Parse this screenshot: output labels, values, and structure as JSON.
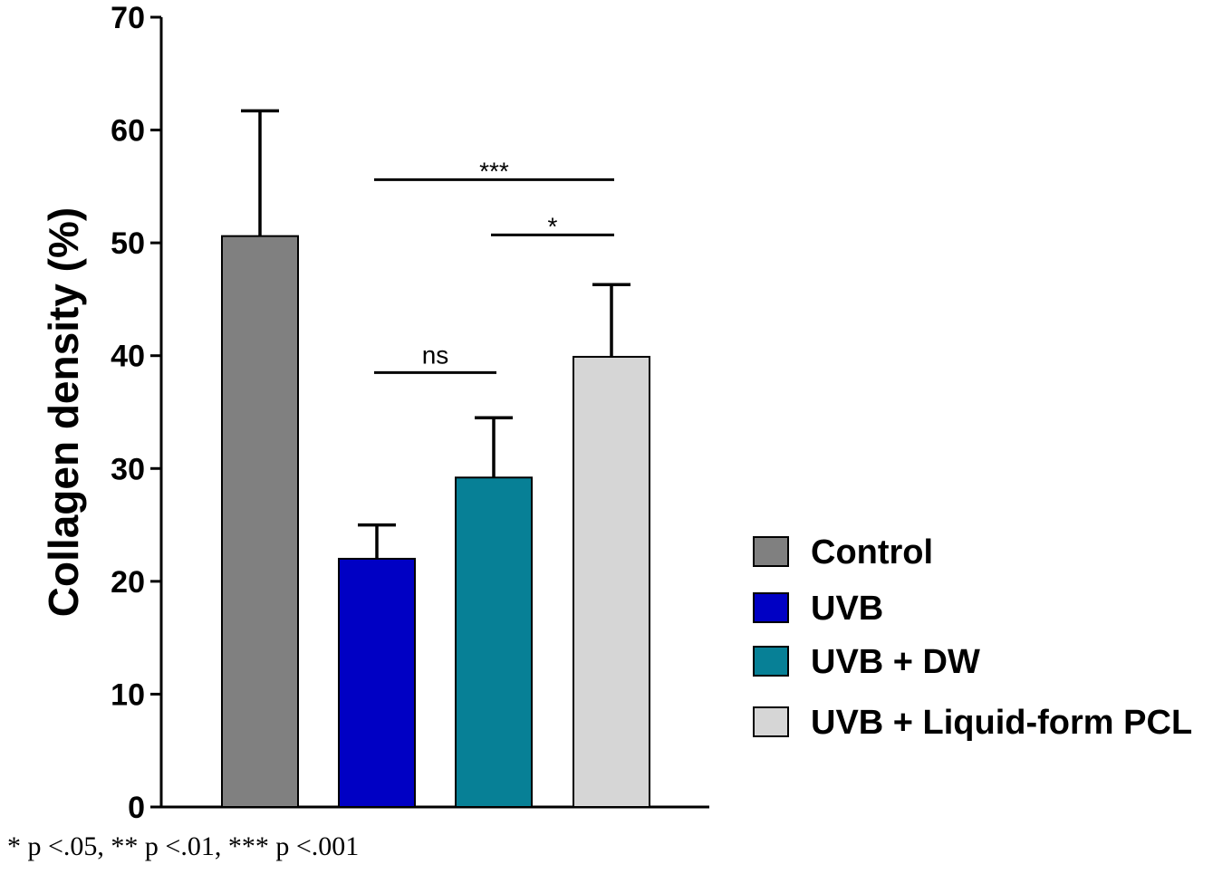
{
  "chart_data": {
    "type": "bar",
    "categories": [
      "Control",
      "UVB",
      "UVB + DW",
      "UVB + Liquid-form PCL"
    ],
    "values": [
      50.6,
      22.0,
      29.2,
      39.9
    ],
    "errors": [
      11.1,
      3.0,
      5.3,
      6.4
    ],
    "colors": [
      "#808080",
      "#0000c4",
      "#078096",
      "#d6d6d6"
    ],
    "ylabel": "Collagen density (%)",
    "xlabel": "",
    "ylim": [
      0,
      70
    ],
    "yticks": [
      "0",
      "10",
      "20",
      "30",
      "40",
      "50",
      "60",
      "70"
    ],
    "grid": false,
    "legend_position": "right",
    "significance": [
      {
        "from": 1,
        "to": 2,
        "label": "ns",
        "y": 38.5
      },
      {
        "from": 1,
        "to": 3,
        "label": "***",
        "y": 55.6
      },
      {
        "from": 2,
        "to": 3,
        "label": "*",
        "y": 50.7
      }
    ],
    "footnote": "* p <.05, ** p <.01, *** p <.001"
  }
}
